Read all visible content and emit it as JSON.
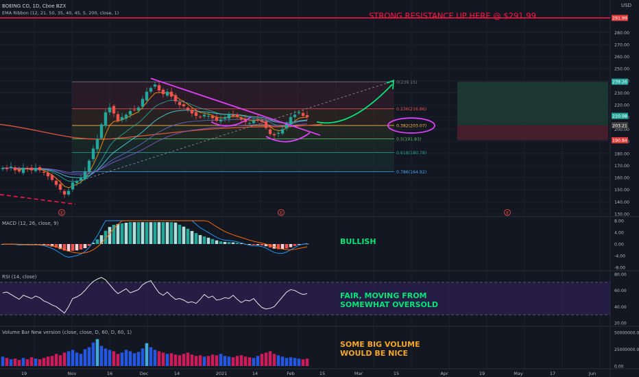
{
  "header": {
    "symbol": "BOEING CO, 1D, Cboe BZX",
    "ema": "EMA Ribbon (12, 21, 50, 35, 40, 45, 5, 200, close, 1)",
    "currency": "USD"
  },
  "annotations": {
    "resistance": "STRONG RESISTANCE UP HERE @ $291.99",
    "macd": "BULLISH",
    "rsi_1": "FAIR, MOVING FROM",
    "rsi_2": "SOMEWHAT OVERSOLD",
    "vol_1": "SOME BIG VOLUME",
    "vol_2": "WOULD BE NICE"
  },
  "pane_labels": {
    "macd": "MACD (12, 26, close, 9)",
    "rsi": "RSI (14, close)",
    "volume": "Volume Bar New version (close, close, D, 60, D, 60, 1)"
  },
  "colors": {
    "bg": "#131722",
    "up": "#26a69a",
    "down": "#ef5350",
    "magenta": "#e040fb",
    "green": "#00e676",
    "red": "#ff1744",
    "orange": "#f5a623",
    "rsi_fill": "#2a1e4a"
  },
  "chart_data": [
    {
      "type": "candlestick",
      "title": "BOEING CO, 1D, Cboe BZX",
      "ylim": [
        130,
        300
      ],
      "price_ticks": [
        130,
        140,
        150,
        160,
        170,
        180,
        190,
        200,
        210,
        220,
        230,
        240,
        250,
        260,
        270,
        280
      ],
      "x_ticks": [
        "19",
        "Nov",
        "16",
        "Dec",
        "14",
        "2021",
        "14",
        "Feb",
        "15",
        "Mar",
        "15",
        "Apr",
        "19",
        "May",
        "17",
        "Jun"
      ],
      "last_price": "210.98",
      "price_tags": [
        "291.99",
        "239.26",
        "210.98",
        "203.21",
        "190.84"
      ],
      "fib_levels": [
        {
          "label": "0(239.15)",
          "value": 239.15
        },
        {
          "label": "0.236(216.86)",
          "value": 216.86
        },
        {
          "label": "0.382(203.07)",
          "value": 203.07
        },
        {
          "label": "0.5(191.93)",
          "value": 191.93
        },
        {
          "label": "0.618(180.78)",
          "value": 180.78
        },
        {
          "label": "0.786(164.92)",
          "value": 164.92
        }
      ],
      "resistance": 291.99,
      "closes": [
        168,
        167,
        169,
        166,
        165,
        168,
        167,
        166,
        168,
        166,
        164,
        161,
        158,
        154,
        150,
        146,
        149,
        156,
        157,
        160,
        165,
        174,
        184,
        192,
        204,
        214,
        218,
        213,
        207,
        210,
        212,
        215,
        216,
        218,
        225,
        231,
        234,
        237,
        232,
        229,
        231,
        227,
        223,
        220,
        219,
        216,
        213,
        211,
        210,
        212,
        211,
        209,
        207,
        208,
        210,
        212,
        211,
        210,
        208,
        206,
        205,
        207,
        208,
        206,
        201,
        196,
        195,
        197,
        200,
        205,
        210,
        212,
        214,
        211,
        210
      ]
    },
    {
      "type": "bar",
      "title": "MACD (12, 26, close, 9)",
      "ylim": [
        -8,
        8
      ],
      "ticks": [
        "8.00",
        "4.00",
        "0.00",
        "-4.00",
        "-8.00"
      ]
    },
    {
      "type": "line",
      "title": "RSI (14, close)",
      "ylim": [
        20,
        80
      ],
      "ticks": [
        "80.00",
        "60.00",
        "40.00",
        "20.00"
      ],
      "values": [
        57,
        58,
        55,
        52,
        49,
        54,
        52,
        50,
        53,
        51,
        47,
        45,
        42,
        40,
        36,
        32,
        40,
        50,
        52,
        55,
        60,
        66,
        71,
        74,
        76,
        73,
        67,
        61,
        56,
        59,
        62,
        57,
        59,
        61,
        67,
        70,
        72,
        64,
        57,
        54,
        58,
        53,
        49,
        50,
        48,
        45,
        46,
        44,
        49,
        55,
        51,
        53,
        48,
        49,
        51,
        50,
        54,
        49,
        45,
        48,
        47,
        50,
        44,
        39,
        37,
        38,
        40,
        46,
        52,
        58,
        61,
        60,
        57,
        55,
        56
      ]
    },
    {
      "type": "bar",
      "title": "Volume Bar New version (close, close, D, 60, D, 60, 1)",
      "ticks": [
        "50000000.00",
        "25000000.00",
        "0.00"
      ],
      "values": [
        14,
        12,
        10,
        11,
        9,
        12,
        10,
        13,
        11,
        10,
        12,
        14,
        15,
        18,
        16,
        20,
        22,
        24,
        20,
        18,
        25,
        28,
        35,
        40,
        30,
        26,
        24,
        22,
        18,
        20,
        24,
        22,
        19,
        21,
        26,
        34,
        28,
        24,
        22,
        20,
        18,
        19,
        17,
        16,
        18,
        20,
        17,
        15,
        16,
        14,
        15,
        17,
        16,
        18,
        15,
        14,
        13,
        15,
        16,
        14,
        13,
        12,
        15,
        18,
        20,
        22,
        18,
        16,
        14,
        12,
        13,
        12,
        11,
        10,
        11
      ]
    }
  ]
}
